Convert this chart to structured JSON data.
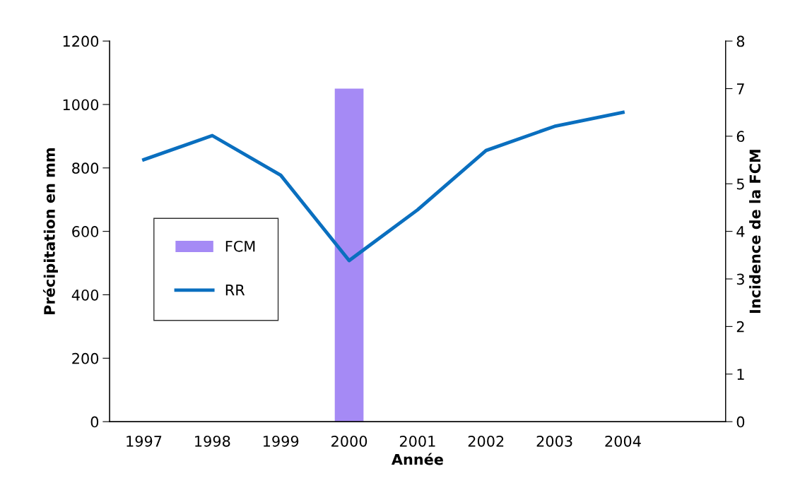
{
  "chart_data": {
    "type": "line",
    "xlabel": "Année",
    "ylabel": "Précipitation en mm",
    "y2label": "Incidence de la FCM",
    "categories": [
      "1997",
      "1998",
      "1999",
      "2000",
      "2001",
      "2002",
      "2003",
      "2004",
      null
    ],
    "series": [
      {
        "name": "FCM",
        "type": "bar",
        "axis": "y2",
        "color": "#a58af5",
        "values": [
          null,
          null,
          null,
          7.0,
          null,
          null,
          null,
          null,
          null
        ]
      },
      {
        "name": "RR",
        "color": "#0a6fbf",
        "values": [
          826,
          902,
          777,
          508,
          668,
          855,
          931,
          975,
          null
        ]
      }
    ],
    "ylim": [
      0,
      1200
    ],
    "yticks": [
      0,
      200,
      400,
      600,
      800,
      1000,
      1200
    ],
    "y2lim": [
      0,
      8
    ],
    "y2ticks": [
      0,
      1,
      2,
      3,
      4,
      5,
      6,
      7,
      8
    ],
    "grid": false,
    "legend": "left",
    "marker": "none",
    "line_style": "solid"
  }
}
